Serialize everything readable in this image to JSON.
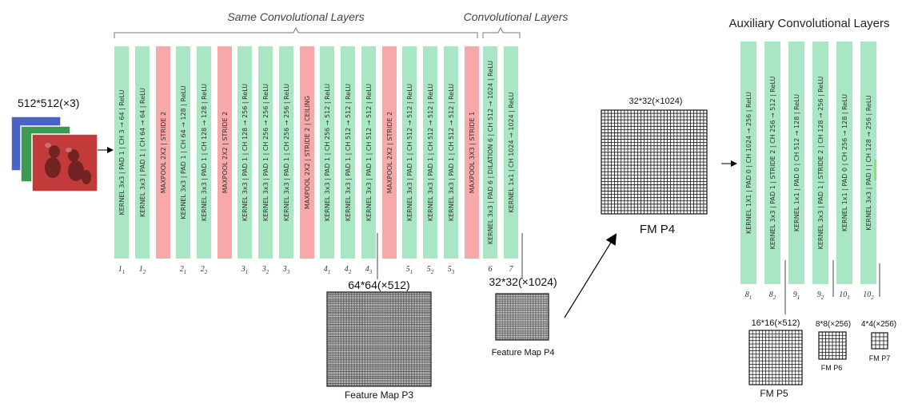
{
  "diagram": {
    "input": {
      "label": "512*512(×3)",
      "channel_colors": [
        "#4a62c8",
        "#3d9a52",
        "#c33a3a"
      ]
    },
    "group_titles": {
      "same_conv": "Same Convolutional Layers",
      "conv": "Convolutional Layers",
      "aux": "Auxiliary Convolutional Layers"
    },
    "colors": {
      "conv": "#a8e6c4",
      "pool": "#f7a8a8",
      "highlight": "#7de86a"
    },
    "layers": [
      {
        "type": "conv",
        "label": "KERNEL 3x3 | PAD 1 | CH 3 → 64 | ReLU",
        "idx": "1",
        "sub": "1"
      },
      {
        "type": "conv",
        "label": "KERNEL 3x3 | PAD 1 | CH 64 → 64 | ReLU",
        "idx": "1",
        "sub": "2"
      },
      {
        "type": "pool",
        "label": "MAXPOOL 2X2 | STRIDE 2"
      },
      {
        "type": "conv",
        "label": "KERNEL 3x3 | PAD 1 | CH 64 → 128 | ReLU",
        "idx": "2",
        "sub": "1"
      },
      {
        "type": "conv",
        "label": "KERNEL 3x3 | PAD 1 | CH 128 → 128 | ReLU",
        "idx": "2",
        "sub": "2"
      },
      {
        "type": "pool",
        "label": "MAXPOOL 2X2 | STRIDE 2"
      },
      {
        "type": "conv",
        "label": "KERNEL 3x3 | PAD 1 | CH 128 → 256 | ReLU",
        "idx": "3",
        "sub": "1"
      },
      {
        "type": "conv",
        "label": "KERNEL 3x3 | PAD 1 | CH 256 → 256 | ReLU",
        "idx": "3",
        "sub": "2"
      },
      {
        "type": "conv",
        "label": "KERNEL 3x3 | PAD 1 | CH 256 → 256 | ReLU",
        "idx": "3",
        "sub": "3"
      },
      {
        "type": "pool",
        "label": "MAXPOOL 2X2 | STRIDE 2 | CEILING"
      },
      {
        "type": "conv",
        "label": "KERNEL 3x3 | PAD 1 | CH 256 → 512 | ReLU",
        "idx": "4",
        "sub": "1"
      },
      {
        "type": "conv",
        "label": "KERNEL 3x3 | PAD 1 | CH 512 → 512 | ReLU",
        "idx": "4",
        "sub": "2"
      },
      {
        "type": "conv",
        "label": "KERNEL 3x3 | PAD 1 | CH 512 → 512 | ReLU",
        "idx": "4",
        "sub": "3"
      },
      {
        "type": "pool",
        "label": "MAXPOOL 2X2 | STRIDE 2"
      },
      {
        "type": "conv",
        "label": "KERNEL 3x3 | PAD 1 | CH 512 → 512 | ReLU",
        "idx": "5",
        "sub": "1"
      },
      {
        "type": "conv",
        "label": "KERNEL 3x3 | PAD 1 | CH 512 → 512 | ReLU",
        "idx": "5",
        "sub": "2"
      },
      {
        "type": "conv",
        "label": "KERNEL 3x3 | PAD 1 | CH 512 → 512 | ReLU",
        "idx": "5",
        "sub": "3"
      },
      {
        "type": "pool",
        "label": "MAXPOOL 3X3 | STRIDE 1"
      },
      {
        "type": "conv",
        "label": "KERNEL 3x3 | PAD 6 | DILATION 6 | CH 512 → 1024 | ReLU",
        "idx": "6",
        "sub": ""
      },
      {
        "type": "conv",
        "label": "KERNEL 1x1 | CH 1024 → 1024 | ReLU",
        "idx": "7",
        "sub": ""
      }
    ],
    "aux_layers": [
      {
        "type": "conv",
        "label": "KERNEL 1X1 | PAD 0 | CH 1024 → 256 | ReLU",
        "idx": "8",
        "sub": "1"
      },
      {
        "type": "conv",
        "label": "KERNEL 3x3 | PAD 1 | STRIDE 2 | CH 256 → 512 | ReLU",
        "idx": "8",
        "sub": "2"
      },
      {
        "type": "conv",
        "label": "KERNEL 1x1 | PAD 0 | CH 512 → 128 | ReLU",
        "idx": "9",
        "sub": "1"
      },
      {
        "type": "conv",
        "label": "KERNEL 3x3 | PAD 1 | STRIDE 2 | CH 128 → 256 | ReLU",
        "idx": "9",
        "sub": "2"
      },
      {
        "type": "conv",
        "label": "KERNEL 1x1 | PAD 0 | CH 256 → 128 | ReLU",
        "idx": "10",
        "sub": "1"
      },
      {
        "type": "conv",
        "label": "KERNEL 3x3 | PAD I | CH 128 → 256 | ReLU",
        "idx": "10",
        "sub": "2"
      }
    ],
    "feature_maps": {
      "p3": {
        "dims": "64*64(×512)",
        "caption": "Feature Map P3"
      },
      "p4": {
        "dims": "32*32(×1024)",
        "caption": "Feature Map P4"
      },
      "p4_big": {
        "dims": "32*32(×1024)",
        "caption": "FM P4"
      },
      "p5": {
        "dims": "16*16(×512)",
        "caption": "FM P5"
      },
      "p6": {
        "dims": "8*8(×256)",
        "caption": "FM P6"
      },
      "p7": {
        "dims": "4*4(×256)",
        "caption": "FM P7"
      }
    }
  }
}
